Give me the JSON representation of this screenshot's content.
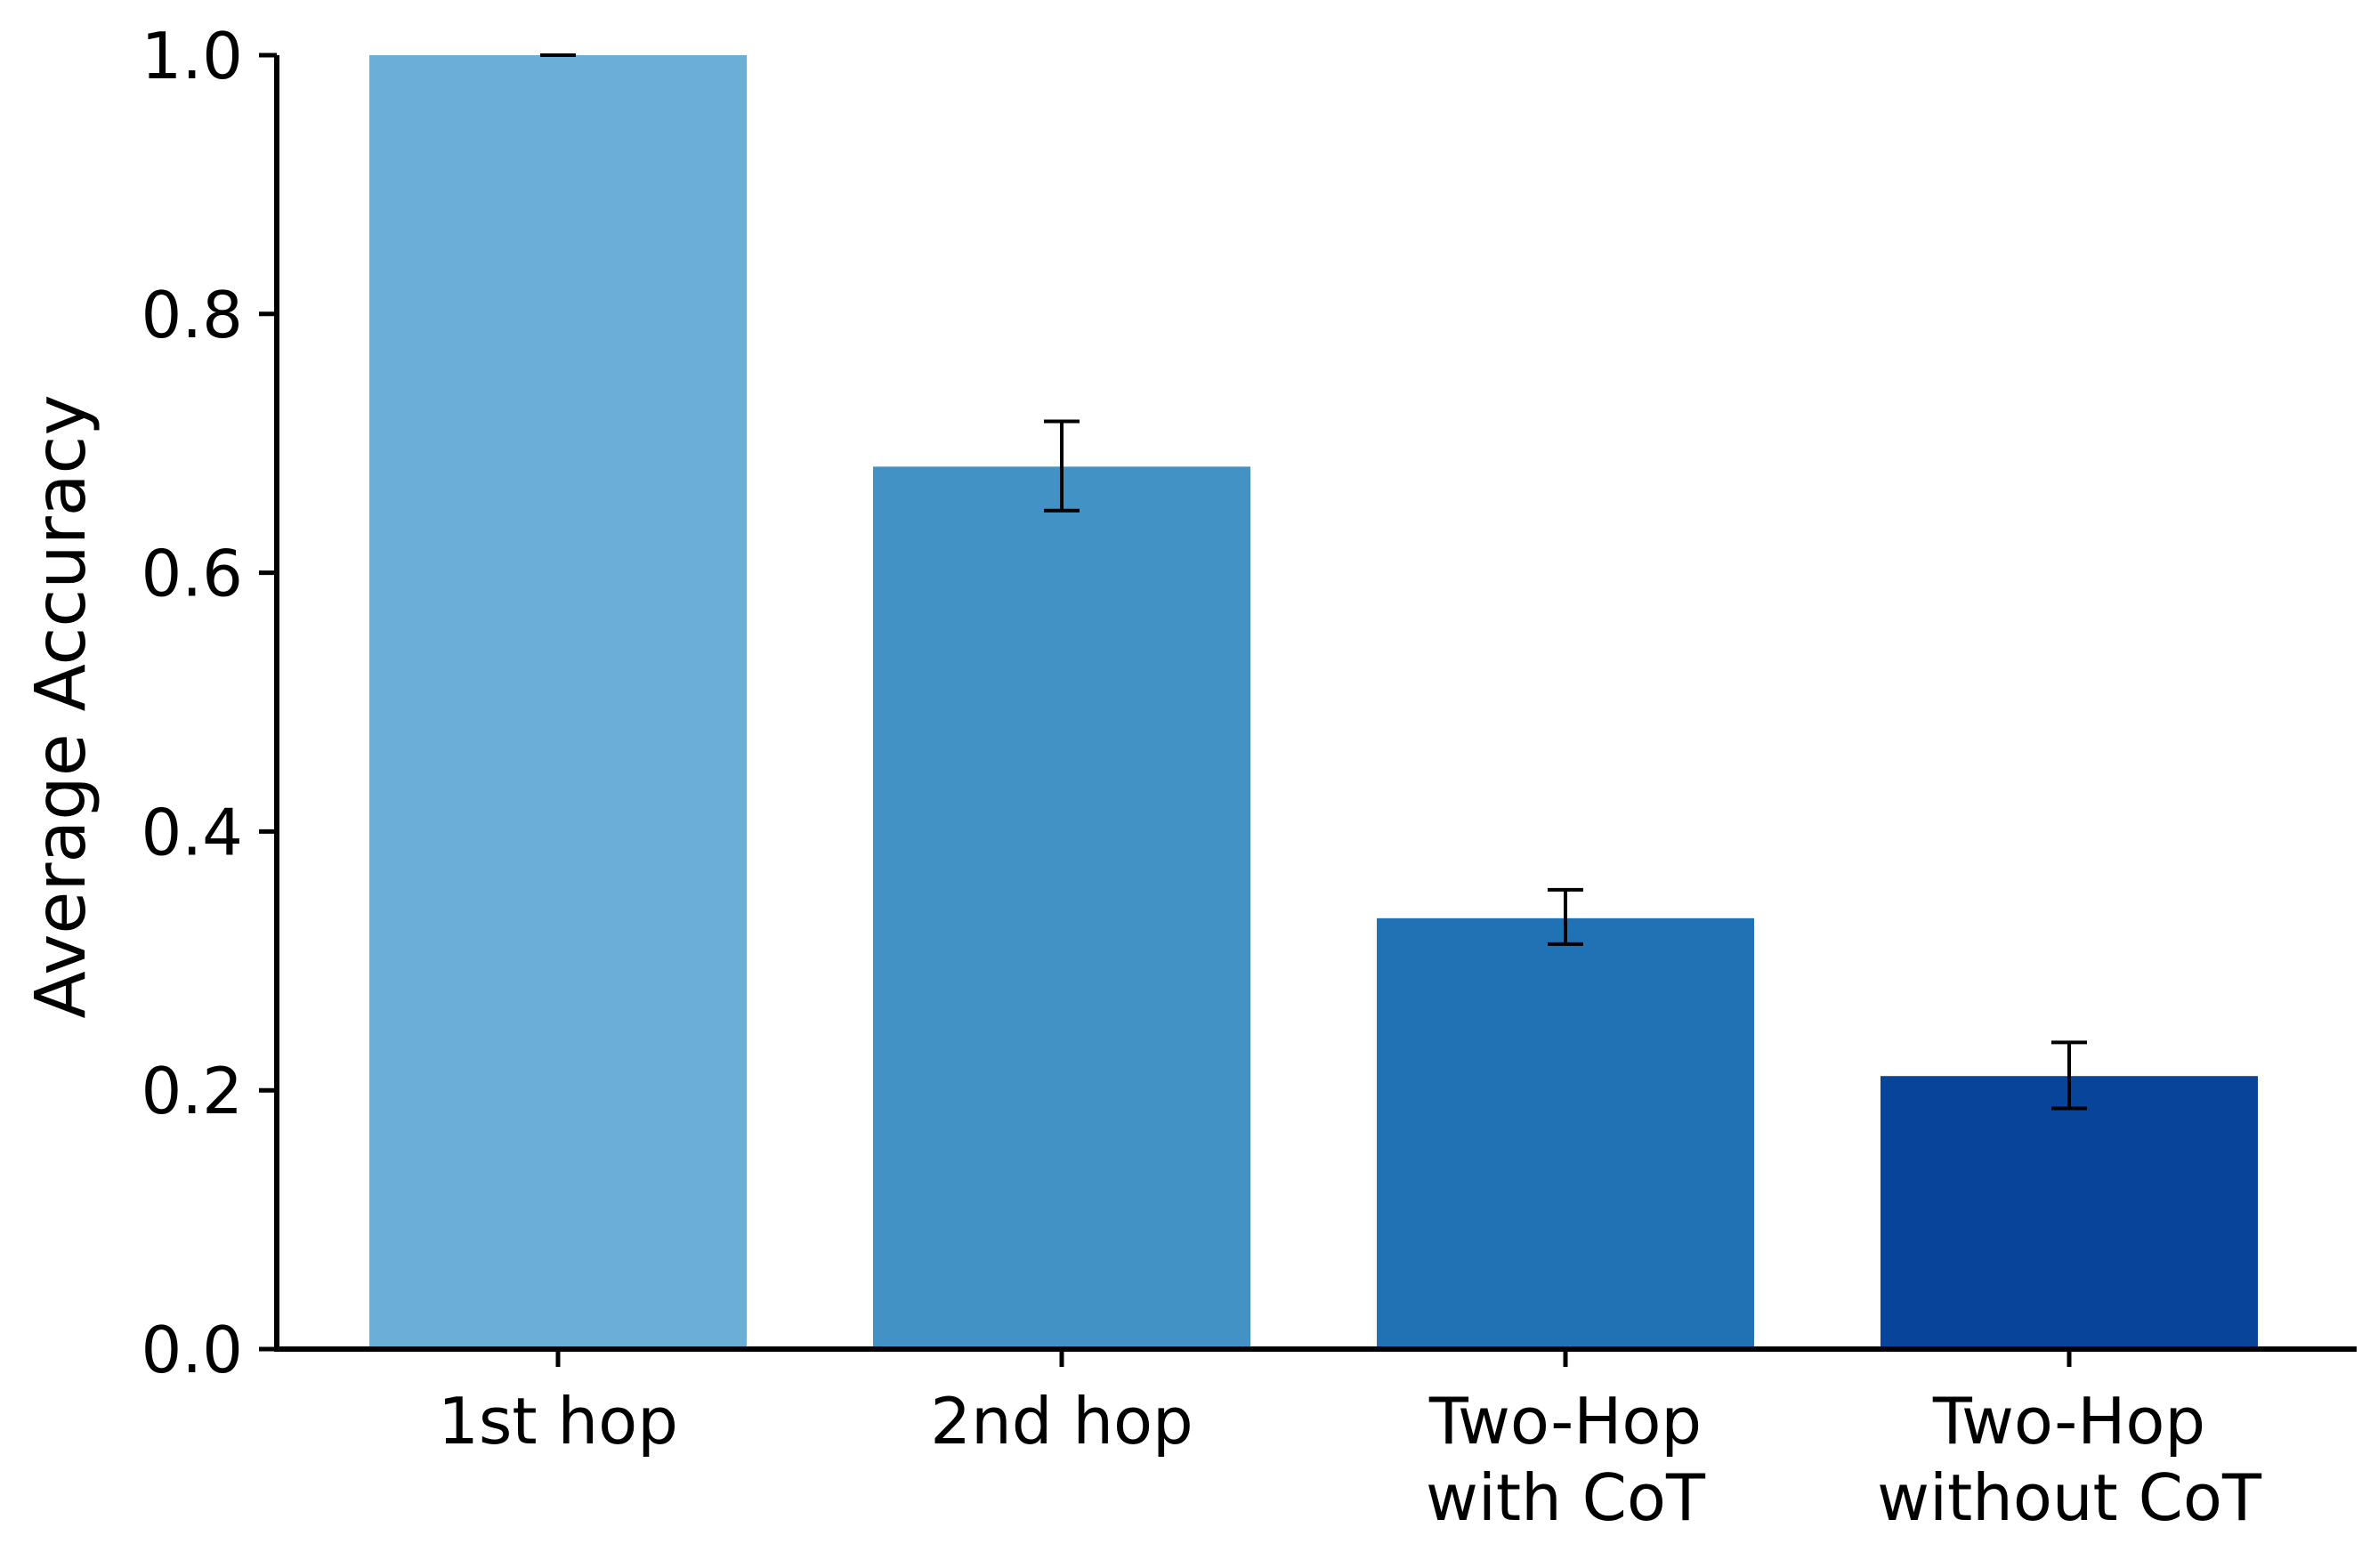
{
  "chart_data": {
    "type": "bar",
    "title": "",
    "xlabel": "",
    "ylabel": "Average Accuracy",
    "ylim": [
      0,
      1.0
    ],
    "yticks": [
      "0.0",
      "0.2",
      "0.4",
      "0.6",
      "0.8",
      "1.0"
    ],
    "ytick_values": [
      0.0,
      0.2,
      0.4,
      0.6,
      0.8,
      1.0
    ],
    "categories": [
      [
        "1st hop"
      ],
      [
        "2nd hop"
      ],
      [
        "Two-Hop",
        "with CoT"
      ],
      [
        "Two-Hop",
        "without CoT"
      ]
    ],
    "values": [
      1.0,
      0.682,
      0.333,
      0.211
    ],
    "error_low": [
      1.0,
      0.648,
      0.313,
      0.186
    ],
    "error_high": [
      1.0,
      0.717,
      0.355,
      0.237
    ],
    "colors": [
      "#6baed6",
      "#4292c6",
      "#2171b5",
      "#08459a"
    ],
    "grid": false,
    "legend": "none"
  }
}
